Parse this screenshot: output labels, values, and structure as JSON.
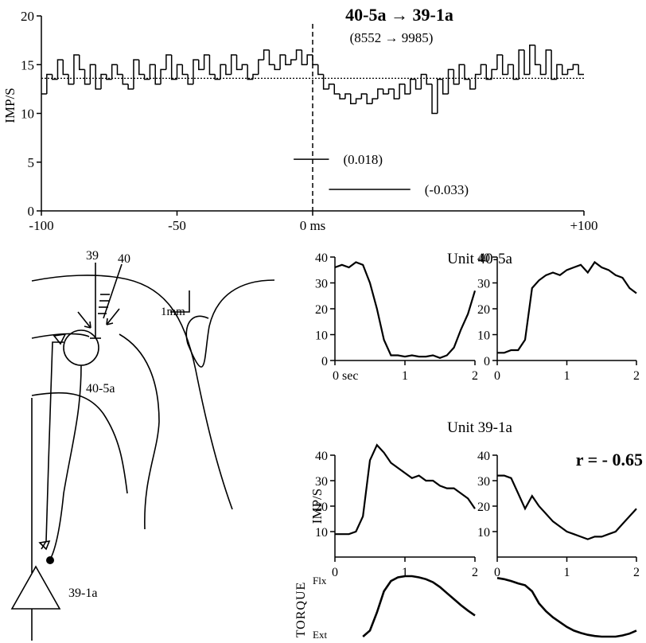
{
  "chart_data": [
    {
      "type": "histogram",
      "title": "40-5a → 39-1a",
      "subtitle": "(8552 → 9985)",
      "y_label": "IMP/S",
      "bins": [
        -100,
        -98,
        -96,
        -94,
        -92,
        -90,
        -88,
        -86,
        -84,
        -82,
        -80,
        -78,
        -76,
        -74,
        -72,
        -70,
        -68,
        -66,
        -64,
        -62,
        -60,
        -58,
        -56,
        -54,
        -52,
        -50,
        -48,
        -46,
        -44,
        -42,
        -40,
        -38,
        -36,
        -34,
        -32,
        -30,
        -28,
        -26,
        -24,
        -22,
        -20,
        -18,
        -16,
        -14,
        -12,
        -10,
        -8,
        -6,
        -4,
        -2,
        0,
        2,
        4,
        6,
        8,
        10,
        12,
        14,
        16,
        18,
        20,
        22,
        24,
        26,
        28,
        30,
        32,
        34,
        36,
        38,
        40,
        42,
        44,
        46,
        48,
        50,
        52,
        54,
        56,
        58,
        60,
        62,
        64,
        66,
        68,
        70,
        72,
        74,
        76,
        78,
        80,
        82,
        84,
        86,
        88,
        90,
        92,
        94,
        96,
        98,
        100
      ],
      "values": [
        12,
        14,
        13.5,
        15.5,
        14,
        13,
        16,
        14.5,
        13,
        15,
        12.5,
        14,
        13.5,
        15,
        14,
        13,
        12.5,
        15.5,
        14,
        13.5,
        15,
        13,
        14.5,
        16,
        13.5,
        15,
        14,
        13,
        15.5,
        14.5,
        16,
        14,
        13.5,
        15,
        14,
        16,
        14.5,
        15,
        13.5,
        14,
        15.5,
        16.5,
        15,
        14.5,
        16,
        15,
        15.5,
        16.5,
        15,
        16,
        15,
        14,
        12.5,
        13,
        12,
        11.5,
        12,
        11,
        11.5,
        12,
        11,
        11.5,
        12.5,
        12,
        12.5,
        11.5,
        13,
        12,
        13.5,
        12.5,
        14,
        13,
        10,
        13.5,
        12,
        14.5,
        13,
        15,
        13.5,
        12.5,
        14,
        15,
        13.5,
        14.5,
        16,
        14,
        15,
        13.5,
        16.5,
        14,
        17,
        15,
        14,
        16.5,
        13.5,
        15,
        14,
        14.5,
        15,
        14
      ],
      "xlim": [
        -100,
        100
      ],
      "xticks": [
        -100,
        -50,
        {
          "value": 0,
          "label": "0 ms"
        },
        {
          "value": 100,
          "label": "+100"
        }
      ],
      "ylim": [
        0,
        20
      ],
      "yticks": [
        0,
        5,
        10,
        15,
        20
      ],
      "reference_line": 13.6,
      "intervals": [
        {
          "x": [
            -7,
            6
          ],
          "y": 5.3,
          "label": "(0.018)"
        },
        {
          "x": [
            6,
            36
          ],
          "y": 2.2,
          "label": "(-0.033)"
        }
      ]
    },
    {
      "type": "line",
      "title": "Unit 40-5a",
      "x": [
        0,
        0.1,
        0.2,
        0.3,
        0.4,
        0.5,
        0.6,
        0.7,
        0.8,
        0.9,
        1,
        1.1,
        1.2,
        1.3,
        1.4,
        1.5,
        1.6,
        1.7,
        1.8,
        1.9,
        2
      ],
      "values": [
        36,
        37,
        36,
        38,
        37,
        30,
        20,
        8,
        2,
        2,
        1.5,
        2,
        1.5,
        1.5,
        2,
        1,
        2,
        5,
        12,
        18,
        27
      ],
      "xlim": [
        0,
        2
      ],
      "xticks": [
        {
          "value": 0,
          "label": "0 sec"
        },
        1,
        2
      ],
      "ylim": [
        0,
        40
      ],
      "yticks": [
        0,
        10,
        20,
        30,
        40
      ]
    },
    {
      "type": "line",
      "x": [
        0,
        0.1,
        0.2,
        0.3,
        0.4,
        0.5,
        0.6,
        0.7,
        0.8,
        0.9,
        1,
        1.1,
        1.2,
        1.3,
        1.4,
        1.5,
        1.6,
        1.7,
        1.8,
        1.9,
        2
      ],
      "values": [
        3,
        3,
        4,
        4,
        8,
        28,
        31,
        33,
        34,
        33,
        35,
        36,
        37,
        34,
        38,
        36,
        35,
        33,
        32,
        28,
        26
      ],
      "xlim": [
        0,
        2
      ],
      "xticks": [
        0,
        1,
        2
      ],
      "ylim": [
        0,
        40
      ],
      "yticks": [
        0,
        10,
        20,
        30,
        40
      ]
    },
    {
      "type": "line",
      "title": "Unit 39-1a",
      "y_label": "IMP/S",
      "x": [
        0,
        0.1,
        0.2,
        0.3,
        0.4,
        0.5,
        0.6,
        0.7,
        0.8,
        0.9,
        1,
        1.1,
        1.2,
        1.3,
        1.4,
        1.5,
        1.6,
        1.7,
        1.8,
        1.9,
        2
      ],
      "values": [
        9,
        9,
        9,
        10,
        16,
        38,
        44,
        41,
        37,
        35,
        33,
        31,
        32,
        30,
        30,
        28,
        27,
        27,
        25,
        23,
        19
      ],
      "xlim": [
        0,
        2
      ],
      "xticks": [
        0,
        1,
        2
      ],
      "ylim": [
        0,
        40
      ],
      "yticks": [
        10,
        20,
        30,
        40
      ]
    },
    {
      "type": "line",
      "annotation": "r = - 0.65",
      "x": [
        0,
        0.1,
        0.2,
        0.3,
        0.4,
        0.5,
        0.6,
        0.7,
        0.8,
        0.9,
        1,
        1.1,
        1.2,
        1.3,
        1.4,
        1.5,
        1.6,
        1.7,
        1.8,
        1.9,
        2
      ],
      "values": [
        32,
        32,
        31,
        25,
        19,
        24,
        20,
        17,
        14,
        12,
        10,
        9,
        8,
        7,
        8,
        8,
        9,
        10,
        13,
        16,
        19
      ],
      "xlim": [
        0,
        2
      ],
      "xticks": [
        0,
        1,
        2
      ],
      "ylim": [
        0,
        40
      ],
      "yticks": [
        10,
        20,
        30,
        40
      ]
    },
    {
      "type": "trace",
      "y_label": "TORQUE",
      "x": [
        0,
        0.1,
        0.2,
        0.3,
        0.4,
        0.5,
        0.6,
        0.7,
        0.8,
        0.9,
        1,
        1.1,
        1.2,
        1.3,
        1.4,
        1.5,
        1.6,
        1.7,
        1.8,
        1.9,
        2
      ],
      "values": [
        null,
        null,
        null,
        null,
        0,
        0.1,
        0.4,
        0.75,
        0.92,
        0.98,
        1,
        1,
        0.98,
        0.95,
        0.9,
        0.82,
        0.72,
        0.62,
        0.52,
        0.43,
        0.35
      ],
      "xlim": [
        0,
        2
      ],
      "ylim": [
        0,
        1
      ],
      "yticks": [
        {
          "value": 1,
          "label": "Flx"
        },
        {
          "value": 0,
          "label": "Ext"
        }
      ]
    },
    {
      "type": "trace",
      "x": [
        0,
        0.1,
        0.2,
        0.3,
        0.4,
        0.5,
        0.6,
        0.7,
        0.8,
        0.9,
        1,
        1.1,
        1.2,
        1.3,
        1.4,
        1.5,
        1.6,
        1.7,
        1.8,
        1.9,
        2
      ],
      "values": [
        0.97,
        0.95,
        0.92,
        0.88,
        0.85,
        0.75,
        0.55,
        0.42,
        0.32,
        0.24,
        0.16,
        0.1,
        0.06,
        0.03,
        0.01,
        0,
        0,
        0,
        0.02,
        0.05,
        0.1
      ],
      "xlim": [
        0,
        2
      ],
      "ylim": [
        0,
        1
      ]
    }
  ],
  "diagram": {
    "electrode_labels": [
      "39",
      "40"
    ],
    "scale_label": "1mm",
    "cell_labels": [
      "40-5a",
      "39-1a"
    ]
  }
}
